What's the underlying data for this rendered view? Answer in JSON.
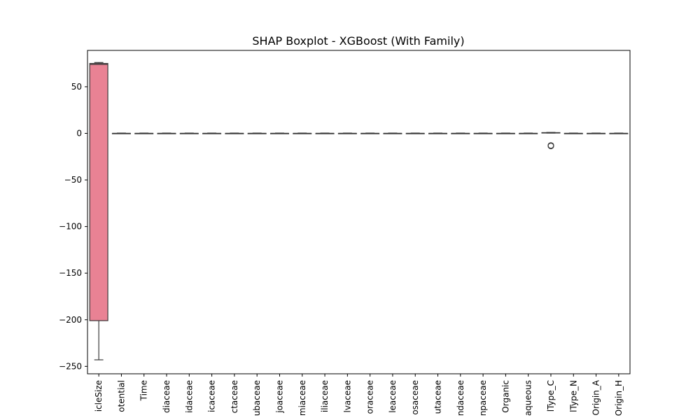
{
  "chart_data": {
    "type": "box",
    "title": "SHAP Boxplot - XGBoost (With Family)",
    "xlabel": "",
    "ylabel": "",
    "ylim": [
      -258,
      89
    ],
    "yticks": [
      50,
      0,
      -50,
      -100,
      -150,
      -200,
      -250
    ],
    "ytick_labels": [
      "50",
      "0",
      "−50",
      "−100",
      "−150",
      "−200",
      "−250"
    ],
    "categories": [
      "icleSize",
      "otential",
      "Time",
      "diaceae",
      "idaceae",
      "icaceae",
      "ctaceae",
      "ubaceae",
      "joaceae",
      "miaceae",
      "iliaceae",
      "lvaceae",
      "oraceae",
      "leaceae",
      "osaceae",
      "utaceae",
      "ndaceae",
      "npaceae",
      "Organic",
      "aqueous",
      "lType_C",
      "lType_N",
      "Origin_A",
      "Origin_H"
    ],
    "boxes": [
      {
        "category": "icleSize",
        "whisker_low": -243,
        "q1": -201,
        "median": 74,
        "q3": 75,
        "whisker_high": 76,
        "color": "#e98294",
        "outliers": []
      },
      {
        "category": "otential",
        "whisker_low": -0.3,
        "q1": 0,
        "median": 0,
        "q3": 0,
        "whisker_high": 0.3,
        "color": "#e08a5a",
        "outliers": []
      },
      {
        "category": "Time",
        "whisker_low": -0.3,
        "q1": 0,
        "median": 0,
        "q3": 0,
        "whisker_high": 0.3,
        "color": "#d09a4a",
        "outliers": []
      },
      {
        "category": "diaceae",
        "whisker_low": -0.3,
        "q1": 0,
        "median": 0,
        "q3": 0,
        "whisker_high": 0.3,
        "color": "#b6a44a",
        "outliers": []
      },
      {
        "category": "idaceae",
        "whisker_low": -0.3,
        "q1": 0,
        "median": 0,
        "q3": 0,
        "whisker_high": 0.3,
        "color": "#9eab4a",
        "outliers": []
      },
      {
        "category": "icaceae",
        "whisker_low": -0.3,
        "q1": 0,
        "median": 0,
        "q3": 0,
        "whisker_high": 0.3,
        "color": "#7db44f",
        "outliers": []
      },
      {
        "category": "ctaceae",
        "whisker_low": -0.3,
        "q1": 0,
        "median": 0,
        "q3": 0,
        "whisker_high": 0.3,
        "color": "#4fba66",
        "outliers": []
      },
      {
        "category": "ubaceae",
        "whisker_low": -0.3,
        "q1": 0,
        "median": 0,
        "q3": 0,
        "whisker_high": 0.3,
        "color": "#4ab98c",
        "outliers": []
      },
      {
        "category": "joaceae",
        "whisker_low": -0.3,
        "q1": 0,
        "median": 0,
        "q3": 0,
        "whisker_high": 0.3,
        "color": "#4bb6a0",
        "outliers": []
      },
      {
        "category": "miaceae",
        "whisker_low": -0.3,
        "q1": 0,
        "median": 0,
        "q3": 0,
        "whisker_high": 0.3,
        "color": "#4db3ae",
        "outliers": []
      },
      {
        "category": "iliaceae",
        "whisker_low": -0.3,
        "q1": 0,
        "median": 0,
        "q3": 0,
        "whisker_high": 0.3,
        "color": "#4fb1bb",
        "outliers": []
      },
      {
        "category": "lvaceae",
        "whisker_low": -0.3,
        "q1": 0,
        "median": 0,
        "q3": 0,
        "whisker_high": 0.3,
        "color": "#52aec8",
        "outliers": []
      },
      {
        "category": "oraceae",
        "whisker_low": -0.3,
        "q1": 0,
        "median": 0,
        "q3": 0,
        "whisker_high": 0.3,
        "color": "#58a9d8",
        "outliers": []
      },
      {
        "category": "leaceae",
        "whisker_low": -0.3,
        "q1": 0,
        "median": 0,
        "q3": 0,
        "whisker_high": 0.3,
        "color": "#6ba2e6",
        "outliers": []
      },
      {
        "category": "osaceae",
        "whisker_low": -0.3,
        "q1": 0,
        "median": 0,
        "q3": 0,
        "whisker_high": 0.3,
        "color": "#8c99ea",
        "outliers": []
      },
      {
        "category": "utaceae",
        "whisker_low": -0.3,
        "q1": 0,
        "median": 0,
        "q3": 0,
        "whisker_high": 0.3,
        "color": "#a98fe8",
        "outliers": []
      },
      {
        "category": "ndaceae",
        "whisker_low": -0.3,
        "q1": 0,
        "median": 0,
        "q3": 0,
        "whisker_high": 0.3,
        "color": "#c283e4",
        "outliers": []
      },
      {
        "category": "npaceae",
        "whisker_low": -0.3,
        "q1": 0,
        "median": 0,
        "q3": 0,
        "whisker_high": 0.3,
        "color": "#d97bd8",
        "outliers": []
      },
      {
        "category": "Organic",
        "whisker_low": -0.3,
        "q1": 0,
        "median": 0,
        "q3": 0,
        "whisker_high": 0.3,
        "color": "#e57ac6",
        "outliers": []
      },
      {
        "category": "aqueous",
        "whisker_low": -0.3,
        "q1": 0,
        "median": 0,
        "q3": 0,
        "whisker_high": 0.3,
        "color": "#e87cb4",
        "outliers": []
      },
      {
        "category": "lType_C",
        "whisker_low": 0.3,
        "q1": 0.6,
        "median": 0.7,
        "q3": 0.8,
        "whisker_high": 1.0,
        "color": "#ea7ea2",
        "outliers": [
          -13.5,
          -13.0
        ]
      },
      {
        "category": "lType_N",
        "whisker_low": -0.3,
        "q1": 0,
        "median": 0,
        "q3": 0,
        "whisker_high": 0.3,
        "color": "#eb8090",
        "outliers": []
      },
      {
        "category": "Origin_A",
        "whisker_low": -0.3,
        "q1": 0,
        "median": 0,
        "q3": 0,
        "whisker_high": 0.3,
        "color": "#ec8285",
        "outliers": []
      },
      {
        "category": "Origin_H",
        "whisker_low": -0.3,
        "q1": 0,
        "median": 0,
        "q3": 0,
        "whisker_high": 0.3,
        "color": "#ec8480",
        "outliers": []
      }
    ],
    "grid": false,
    "legend": "none"
  }
}
